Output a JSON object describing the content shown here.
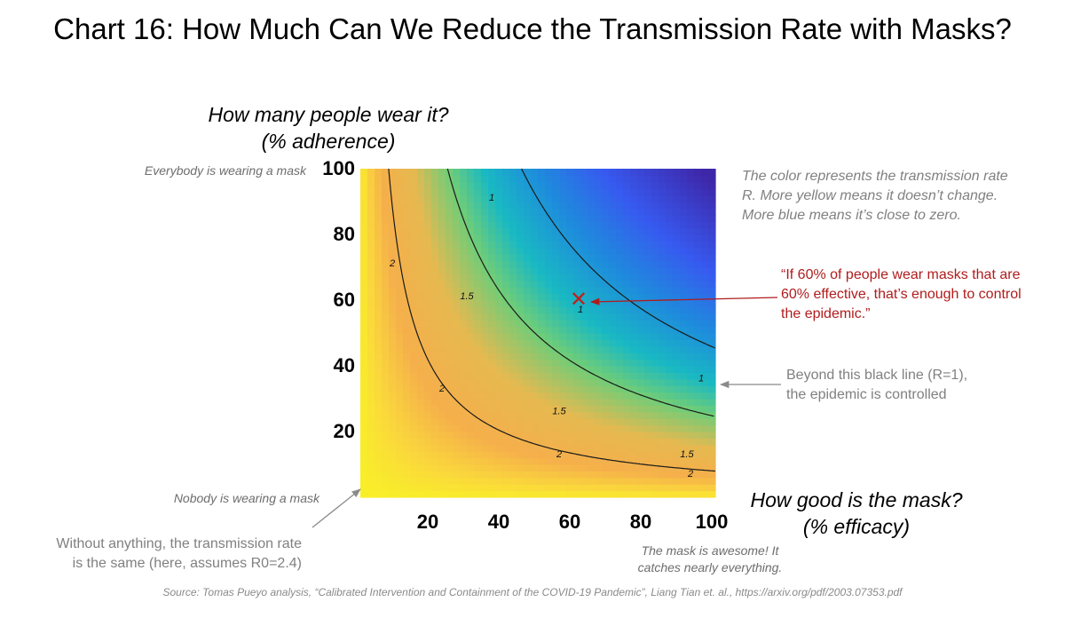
{
  "title": "Chart 16: How Much Can We Reduce the Transmission Rate with Masks?",
  "y_axis_title": {
    "line1": "How many people wear it?",
    "line2": "(% adherence)"
  },
  "x_axis_title": {
    "line1": "How good is the mask?",
    "line2": "(% efficacy)"
  },
  "annotations": {
    "everybody": "Everybody is wearing a mask",
    "nobody": "Nobody is wearing a mask",
    "color_note": {
      "line1": "The color represents the transmission rate",
      "line2": "R. More yellow means it doesn’t change.",
      "line3": "More blue means it’s close to zero."
    },
    "quote": {
      "line1": "“If 60% of people wear masks that are",
      "line2": "60% effective, that’s enough to control",
      "line3": "the epidemic.”"
    },
    "beyond": {
      "line1": "Beyond this black line (R=1),",
      "line2": "the epidemic is controlled"
    },
    "without": {
      "line1": "Without anything, the transmission rate",
      "line2": "is the same (here, assumes R0=2.4)"
    },
    "awesome": {
      "line1": "The mask is awesome! It",
      "line2": "catches nearly everything."
    },
    "marker_symbol": "✕"
  },
  "source": "Source: Tomas Pueyo analysis, “Calibrated Intervention and Containment of the COVID-19 Pandemic”, Liang Tian et. al., https://arxiv.org/pdf/2003.07353.pdf",
  "chart_data": {
    "type": "heatmap",
    "title": "Chart 16: How Much Can We Reduce the Transmission Rate with Masks?",
    "xlabel": "How good is the mask? (% efficacy)",
    "ylabel": "How many people wear it? (% adherence)",
    "xlim": [
      0,
      100
    ],
    "ylim": [
      0,
      100
    ],
    "x_ticks": [
      20,
      40,
      60,
      80,
      100
    ],
    "y_ticks": [
      20,
      40,
      60,
      80,
      100
    ],
    "R0": 2.4,
    "color_scale": {
      "high": "yellow",
      "low": "blue",
      "value": "transmission rate R"
    },
    "contours": [
      {
        "level": 2,
        "label": "2",
        "label_positions": [
          [
            9,
            71
          ],
          [
            23,
            33
          ],
          [
            56,
            13
          ],
          [
            93,
            7
          ]
        ]
      },
      {
        "level": 1.5,
        "label": "1.5",
        "label_positions": [
          [
            30,
            61
          ],
          [
            56,
            26
          ],
          [
            92,
            13
          ]
        ]
      },
      {
        "level": 1,
        "label": "1",
        "label_positions": [
          [
            37,
            91
          ],
          [
            62,
            57
          ],
          [
            96,
            36
          ]
        ]
      }
    ],
    "highlight_point": {
      "x": 60,
      "y": 60
    }
  }
}
